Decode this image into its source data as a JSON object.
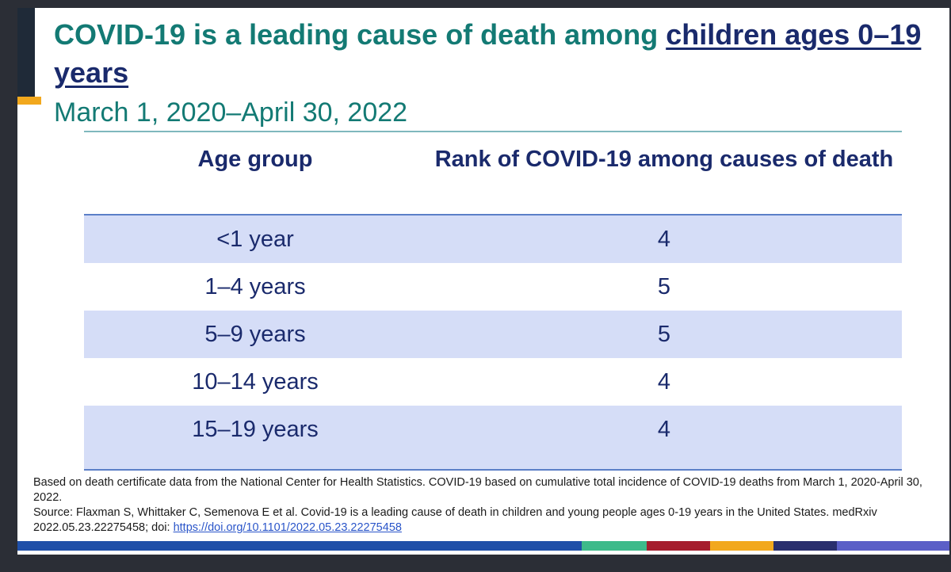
{
  "title": {
    "part1": "COVID-19 is a leading cause of death among ",
    "underlined": "children ages 0–19 years"
  },
  "subtitle": "March 1, 2020–April 30, 2022",
  "table": {
    "headers": [
      "Age group",
      "Rank of COVID-19 among causes of death"
    ],
    "rows": [
      {
        "age_group": "<1 year",
        "rank": "4"
      },
      {
        "age_group": "1–4 years",
        "rank": "5"
      },
      {
        "age_group": "5–9 years",
        "rank": "5"
      },
      {
        "age_group": "10–14 years",
        "rank": "4"
      },
      {
        "age_group": "15–19 years",
        "rank": "4"
      }
    ]
  },
  "footnote": {
    "basis": "Based on death certificate data from the National Center for Health Statistics. COVID-19 based on cumulative total incidence of COVID-19 deaths from March 1, 2020-April 30, 2022.",
    "source_text": "Source: Flaxman S, Whittaker C, Semenova E et al. Covid-19 is a leading cause of death in children and young people ages 0-19 years in the United States. medRxiv 2022.05.23.22275458; doi: ",
    "doi_link": "https://doi.org/10.1101/2022.05.23.22275458"
  },
  "colors": {
    "title_teal": "#137a74",
    "navy": "#1a2a6c",
    "row_shade": "#d5ddf7",
    "accent_gold": "#f2a81d",
    "bar_segments": [
      "#1f4fa8",
      "#3dba8a",
      "#a51d2d",
      "#f2a81d",
      "#2a2f6e",
      "#5b5fc7"
    ]
  }
}
